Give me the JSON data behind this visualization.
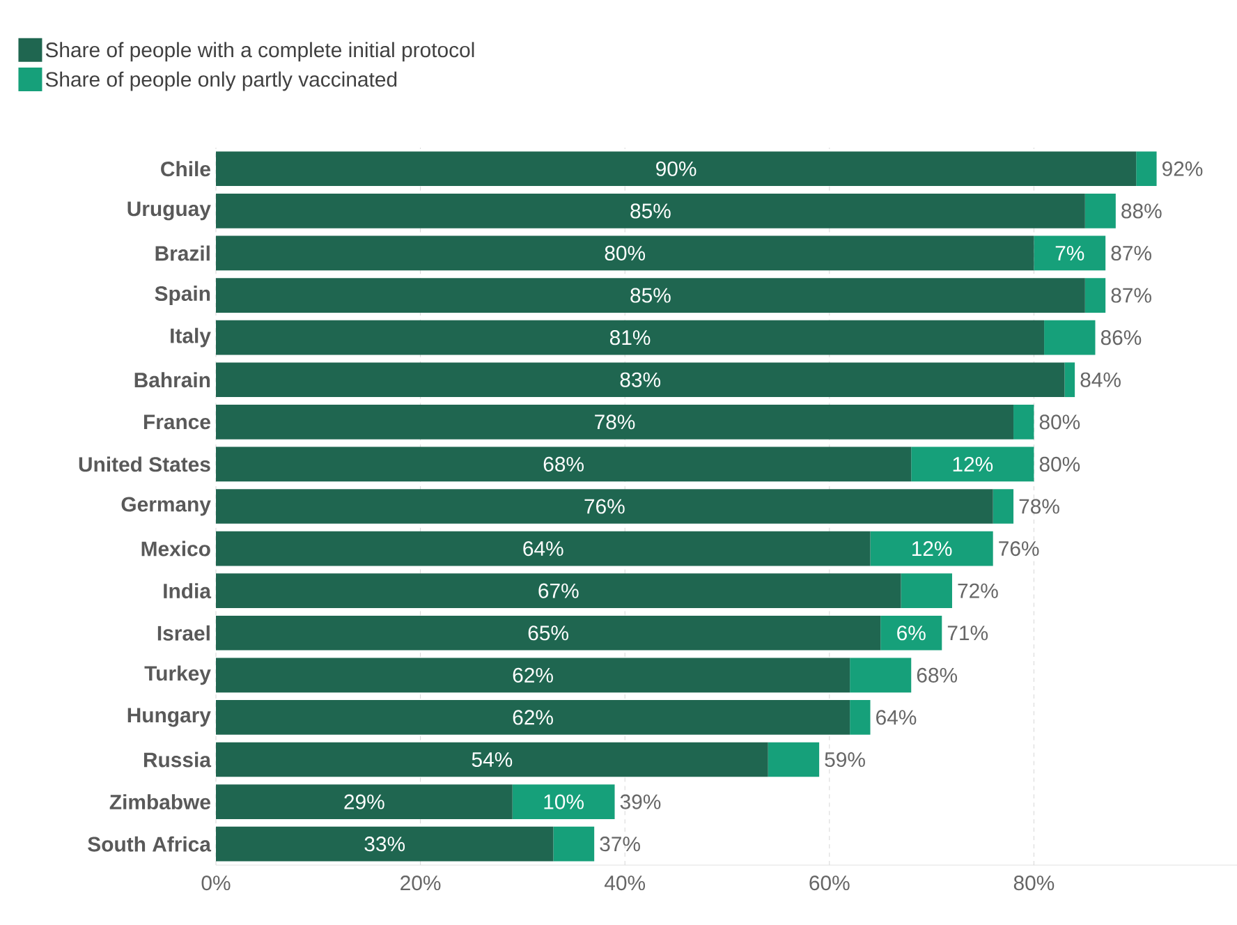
{
  "chart_data": {
    "type": "bar",
    "orientation": "horizontal",
    "stacked": true,
    "categories": [
      "Chile",
      "Uruguay",
      "Brazil",
      "Spain",
      "Italy",
      "Bahrain",
      "France",
      "United States",
      "Germany",
      "Mexico",
      "India",
      "Israel",
      "Turkey",
      "Hungary",
      "Russia",
      "Zimbabwe",
      "South Africa"
    ],
    "series": [
      {
        "name": "Share of people with a complete initial protocol",
        "color": "#1f6650",
        "values": [
          90,
          85,
          80,
          85,
          81,
          83,
          78,
          68,
          76,
          64,
          67,
          65,
          62,
          62,
          54,
          29,
          33
        ],
        "value_labels": [
          "90%",
          "85%",
          "80%",
          "85%",
          "81%",
          "83%",
          "78%",
          "68%",
          "76%",
          "64%",
          "67%",
          "65%",
          "62%",
          "62%",
          "54%",
          "29%",
          "33%"
        ]
      },
      {
        "name": "Share of people only partly vaccinated",
        "color": "#16a07a",
        "values": [
          2,
          3,
          7,
          2,
          5,
          1,
          2,
          12,
          2,
          12,
          5,
          6,
          6,
          2,
          5,
          10,
          4
        ],
        "value_labels": [
          null,
          null,
          "7%",
          null,
          null,
          null,
          null,
          "12%",
          null,
          "12%",
          null,
          "6%",
          null,
          null,
          null,
          "10%",
          null
        ]
      }
    ],
    "totals": [
      "92%",
      "88%",
      "87%",
      "87%",
      "86%",
      "84%",
      "80%",
      "80%",
      "78%",
      "76%",
      "72%",
      "71%",
      "68%",
      "64%",
      "59%",
      "39%",
      "37%"
    ],
    "xlim": [
      0,
      100
    ],
    "xticks": [
      {
        "value": 0,
        "label": "0%"
      },
      {
        "value": 20,
        "label": "20%"
      },
      {
        "value": 40,
        "label": "40%"
      },
      {
        "value": 60,
        "label": "60%"
      },
      {
        "value": 80,
        "label": "80%"
      }
    ],
    "grid": "x",
    "legend": "top left"
  }
}
